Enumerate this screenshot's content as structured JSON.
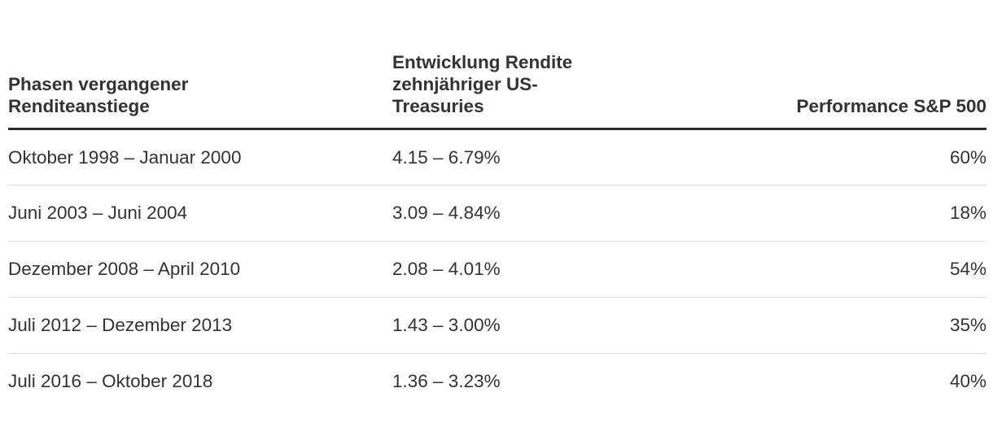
{
  "colors": {
    "text": "#333333",
    "header_underline": "#2d2d2d",
    "row_divider": "#e0e0e0",
    "background": "#ffffff"
  },
  "chart_data": {
    "type": "table",
    "title": "",
    "columns": [
      "Phasen vergangener Renditeanstiege",
      "Entwicklung Rendite zehnjähriger US-Treasuries",
      "Performance S&P 500"
    ],
    "rows": [
      [
        "Oktober 1998 – Januar 2000",
        "4.15 – 6.79%",
        "60%"
      ],
      [
        "Juni 2003 – Juni 2004",
        "3.09 – 4.84%",
        "18%"
      ],
      [
        "Dezember 2008 – April 2010",
        "2.08 – 4.01%",
        "54%"
      ],
      [
        "Juli 2012 – Dezember 2013",
        "1.43 – 3.00%",
        "35%"
      ],
      [
        "Juli 2016 – Oktober 2018",
        "1.36 – 3.23%",
        "40%"
      ]
    ],
    "treasury_yield_ranges_pct": [
      [
        4.15,
        6.79
      ],
      [
        3.09,
        4.84
      ],
      [
        2.08,
        4.01
      ],
      [
        1.43,
        3.0
      ],
      [
        1.36,
        3.23
      ]
    ],
    "sp500_performance_pct": [
      60,
      18,
      54,
      35,
      40
    ],
    "layout": {
      "header_alignment": [
        "left",
        "left",
        "right"
      ],
      "body_alignment": [
        "left",
        "left",
        "right"
      ],
      "grid": "horizontal-dividers-only"
    }
  }
}
